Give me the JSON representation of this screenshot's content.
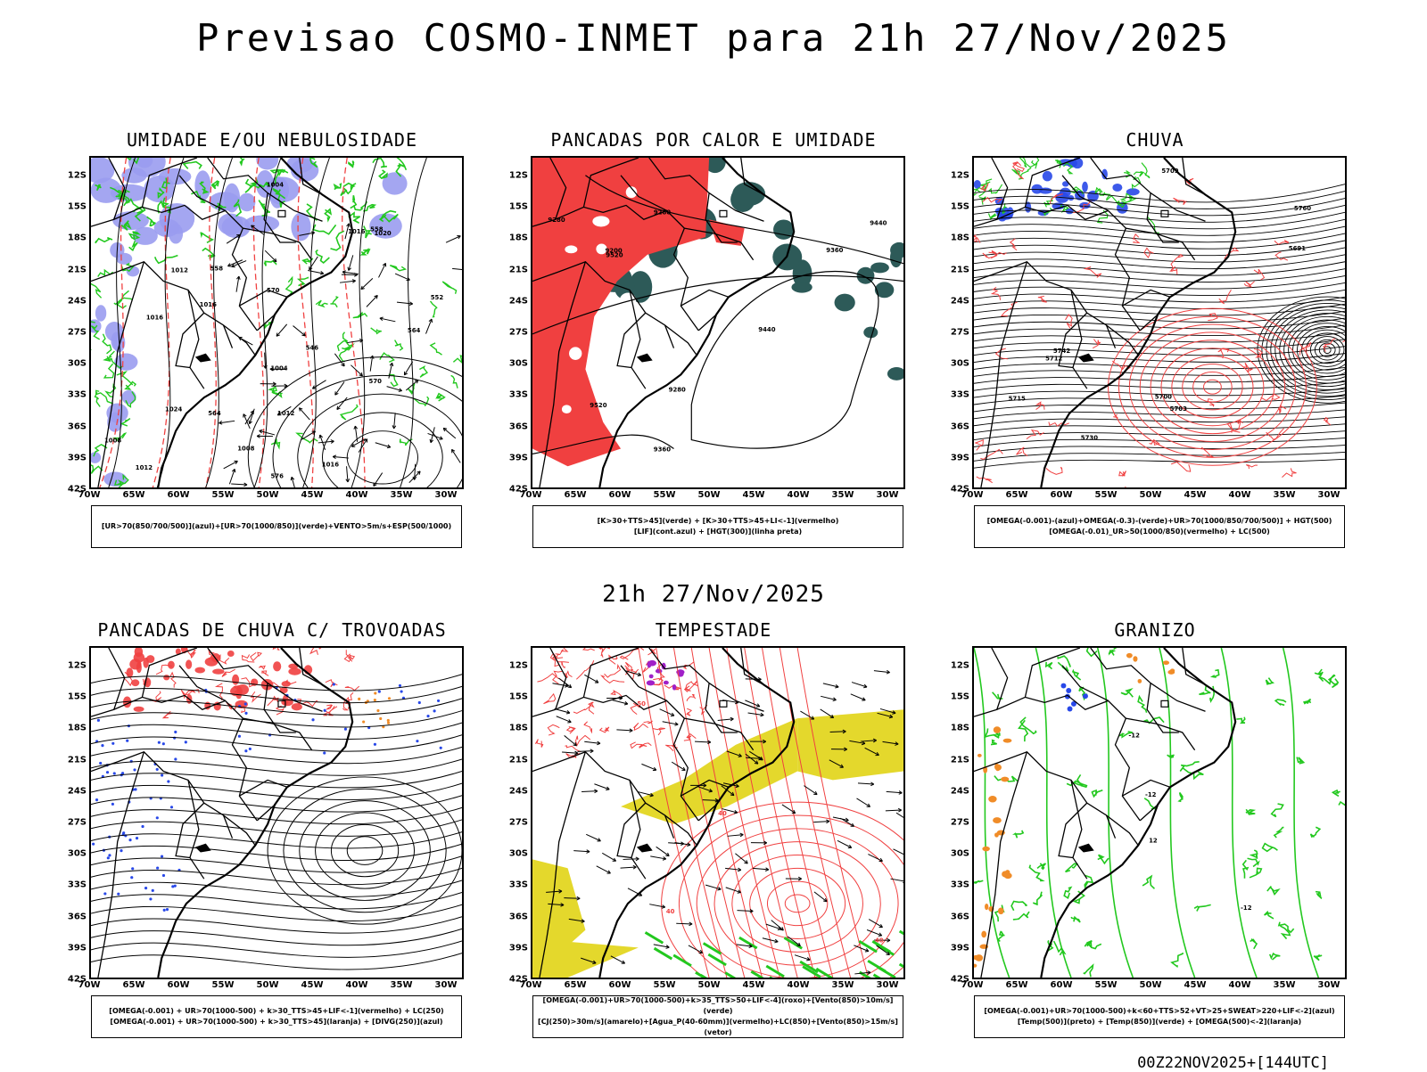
{
  "title": "Previsao COSMO-INMET  para 21h 27/Nov/2025",
  "mid_time": "21h 27/Nov/2025",
  "run_stamp": "00Z22NOV2025+[144UTC]",
  "axes": {
    "lat_labels": [
      "12S",
      "15S",
      "18S",
      "21S",
      "24S",
      "27S",
      "30S",
      "33S",
      "36S",
      "39S",
      "42S"
    ],
    "lon_labels": [
      "70W",
      "65W",
      "60W",
      "55W",
      "50W",
      "45W",
      "40W",
      "35W",
      "30W"
    ]
  },
  "colors": {
    "blue_fill": "#9a9cf0",
    "green": "#22c81e",
    "red": "#f04040",
    "dark_teal": "#2d5a58",
    "yellow": "#e4d82c",
    "orange": "#f08c28",
    "purple": "#a020c8",
    "blue_dot": "#2848e8"
  },
  "panels": [
    {
      "title": "UMIDADE E/OU NEBULOSIDADE",
      "legend": [
        "[UR>70(850/700/500)](azul)+[UR>70(1000/850)](verde)+VENTO>5m/s+ESP(500/1000)"
      ],
      "contour_labels": [
        "1012",
        "1008",
        "1016",
        "1016",
        "1012",
        "1016",
        "1020",
        "1024",
        "1004",
        "1012",
        "1016",
        "1008",
        "1004",
        "570",
        "576",
        "564",
        "570",
        "558",
        "564",
        "552",
        "558",
        "546"
      ]
    },
    {
      "title": "PANCADAS POR CALOR E UMIDADE",
      "legend": [
        "[K>30+TTS>45](verde)  +  [K>30+TTS>45+LI<-1](vermelho)",
        "[LIF](cont.azul)  +  [HGT(300)](linha preta)"
      ],
      "contour_labels": [
        "9520",
        "9520",
        "9440",
        "9360",
        "9280",
        "9440",
        "9360",
        "9280",
        "9200",
        "9280"
      ]
    },
    {
      "title": "CHUVA",
      "legend": [
        "[OMEGA(-0.001)-(azul)+OMEGA(-0.3)-(verde)+UR>70(1000/850/700/500)]  +  HGT(500)",
        "[OMEGA(-0.01)_UR>50(1000/850)(vermelho)  +  LC(500)"
      ],
      "contour_labels": [
        "5760",
        "5730",
        "5712",
        "5700",
        "5691",
        "5742",
        "5709",
        "5715",
        "5703"
      ]
    },
    {
      "title": "PANCADAS DE CHUVA C/ TROVOADAS",
      "legend": [
        "[OMEGA(-0.001)  +  UR>70(1000-500)  +  k>30_TTS>45+LIF<-1](vermelho)  +  LC(250)",
        "[OMEGA(-0.001)  +  UR>70(1000-500)  +  k>30_TTS>45](laranja)  +  [DIVG(250)](azul)"
      ],
      "contour_labels": []
    },
    {
      "title": "TEMPESTADE",
      "legend": [
        "[OMEGA(-0.001)+UR>70(1000-500)+k>35_TTS>50+LIF<-4](roxo)+[Vento(850)>10m/s](verde)",
        "[CJ(250)>30m/s](amarelo)+[Agua_P(40-60mm)](vermelho)+LC(850)+[Vento(850)>15m/s](vetor)"
      ],
      "contour_labels": [
        "40",
        "40",
        "50",
        "40"
      ]
    },
    {
      "title": "GRANIZO",
      "legend": [
        "[OMEGA(-0.001)+UR>70(1000-500)+k<60+TTS>52+VT>25+SWEAT>220+LIF<-2](azul)",
        "[Temp(500)](preto)  +  [Temp(850)](verde)  +  [OMEGA(500)<-2](laranja)"
      ],
      "contour_labels": [
        "-12",
        "-12",
        "-12",
        "12"
      ]
    }
  ]
}
